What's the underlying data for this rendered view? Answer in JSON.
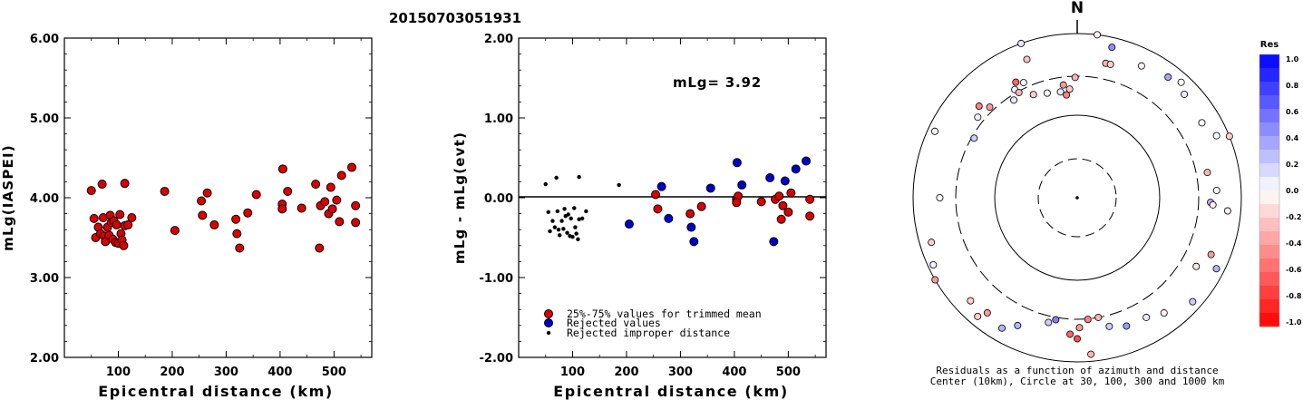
{
  "event_id": "20150703051931",
  "chart_data": [
    {
      "type": "scatter",
      "xlabel": "Epicentral distance (km)",
      "ylabel": "mLg(IASPEI)",
      "xlim": [
        0,
        570
      ],
      "ylim": [
        2.0,
        6.0
      ],
      "xticks": [
        "100",
        "200",
        "300",
        "400",
        "500"
      ],
      "yticks": [
        "2.00",
        "3.00",
        "4.00",
        "5.00",
        "6.00"
      ],
      "series": [
        {
          "color": "#dd0000",
          "points": [
            [
              50,
              4.09
            ],
            [
              70,
              4.17
            ],
            [
              112,
              4.18
            ],
            [
              55,
              3.74
            ],
            [
              58,
              3.5
            ],
            [
              63,
              3.63
            ],
            [
              67,
              3.55
            ],
            [
              72,
              3.75
            ],
            [
              74,
              3.52
            ],
            [
              76,
              3.45
            ],
            [
              80,
              3.63
            ],
            [
              83,
              3.53
            ],
            [
              85,
              3.78
            ],
            [
              87,
              3.69
            ],
            [
              90,
              3.48
            ],
            [
              92,
              3.71
            ],
            [
              95,
              3.44
            ],
            [
              97,
              3.66
            ],
            [
              100,
              3.43
            ],
            [
              103,
              3.79
            ],
            [
              105,
              3.55
            ],
            [
              107,
              3.47
            ],
            [
              110,
              3.4
            ],
            [
              112,
              3.65
            ],
            [
              118,
              3.66
            ],
            [
              125,
              3.75
            ],
            [
              186,
              4.08
            ],
            [
              205,
              3.59
            ],
            [
              254,
              3.96
            ],
            [
              265,
              4.06
            ],
            [
              256,
              3.78
            ],
            [
              278,
              3.66
            ],
            [
              318,
              3.73
            ],
            [
              320,
              3.55
            ],
            [
              325,
              3.37
            ],
            [
              340,
              3.81
            ],
            [
              356,
              4.04
            ],
            [
              405,
              4.36
            ],
            [
              404,
              3.92
            ],
            [
              404,
              3.86
            ],
            [
              414,
              4.08
            ],
            [
              440,
              3.87
            ],
            [
              466,
              4.17
            ],
            [
              473,
              3.37
            ],
            [
              475,
              3.9
            ],
            [
              483,
              3.95
            ],
            [
              490,
              3.8
            ],
            [
              494,
              4.13
            ],
            [
              497,
              3.86
            ],
            [
              505,
              3.97
            ],
            [
              514,
              4.28
            ],
            [
              510,
              3.7
            ],
            [
              533,
              4.38
            ],
            [
              540,
              3.9
            ],
            [
              540,
              3.69
            ]
          ]
        }
      ]
    },
    {
      "type": "scatter",
      "xlabel": "Epicentral distance (km)",
      "ylabel": "mLg - mLg(evt)",
      "annotation": "mLg= 3.92",
      "xlim": [
        0,
        570
      ],
      "ylim": [
        -2.0,
        2.0
      ],
      "xticks": [
        "100",
        "200",
        "300",
        "400",
        "500"
      ],
      "yticks": [
        "2.00",
        "1.00",
        "0.00",
        "-1.00",
        "-2.00"
      ],
      "reference_line": 0.0,
      "series": [
        {
          "name": "25%-75% values for trimmed mean",
          "color": "#dd0000",
          "points": [
            [
              254,
              0.04
            ],
            [
              258,
              -0.14
            ],
            [
              318,
              -0.2
            ],
            [
              339,
              -0.11
            ],
            [
              404,
              -0.02
            ],
            [
              407,
              0.02
            ],
            [
              404,
              -0.06
            ],
            [
              450,
              -0.05
            ],
            [
              476,
              -0.02
            ],
            [
              483,
              0.02
            ],
            [
              490,
              -0.1
            ],
            [
              487,
              -0.27
            ],
            [
              500,
              -0.18
            ],
            [
              505,
              0.06
            ],
            [
              540,
              -0.02
            ],
            [
              540,
              -0.23
            ]
          ]
        },
        {
          "name": "Rejected values",
          "color": "#0000cc",
          "points": [
            [
              205,
              -0.33
            ],
            [
              265,
              0.14
            ],
            [
              278,
              -0.26
            ],
            [
              320,
              -0.37
            ],
            [
              325,
              -0.55
            ],
            [
              356,
              0.12
            ],
            [
              405,
              0.44
            ],
            [
              414,
              0.16
            ],
            [
              466,
              0.25
            ],
            [
              473,
              -0.55
            ],
            [
              494,
              0.21
            ],
            [
              514,
              0.36
            ],
            [
              533,
              0.46
            ]
          ]
        },
        {
          "name": "Rejected improper distance",
          "color": "#000000",
          "points": [
            [
              50,
              0.17
            ],
            [
              70,
              0.25
            ],
            [
              112,
              0.26
            ],
            [
              186,
              0.16
            ],
            [
              55,
              -0.18
            ],
            [
              58,
              -0.42
            ],
            [
              63,
              -0.29
            ],
            [
              67,
              -0.37
            ],
            [
              72,
              -0.17
            ],
            [
              74,
              -0.4
            ],
            [
              76,
              -0.47
            ],
            [
              80,
              -0.29
            ],
            [
              83,
              -0.39
            ],
            [
              85,
              -0.14
            ],
            [
              87,
              -0.23
            ],
            [
              90,
              -0.44
            ],
            [
              92,
              -0.21
            ],
            [
              95,
              -0.48
            ],
            [
              97,
              -0.26
            ],
            [
              100,
              -0.49
            ],
            [
              103,
              -0.13
            ],
            [
              105,
              -0.37
            ],
            [
              107,
              -0.45
            ],
            [
              110,
              -0.52
            ],
            [
              112,
              -0.27
            ],
            [
              118,
              -0.26
            ],
            [
              125,
              -0.17
            ]
          ]
        }
      ]
    },
    {
      "type": "scatter",
      "title": "N",
      "caption_line1": "Residuals as a function of azimuth and distance",
      "caption_line2": "Center (10km), Circle at 30, 100, 300 and 1000 km",
      "ring_distances_km": [
        30,
        100,
        300,
        1000
      ],
      "colorbar": {
        "label": "Res",
        "ticks": [
          "1.0",
          "0.8",
          "0.6",
          "0.4",
          "0.2",
          "0.0",
          "-0.2",
          "-0.4",
          "-0.6",
          "-0.8",
          "-1.0"
        ],
        "positive_color": "#0000ff",
        "negative_color": "#ff0000"
      },
      "points_azimuth_deg_distance_km_residual": [
        [
          7,
          1000,
          -0.05
        ],
        [
          13,
          760,
          0.45
        ],
        [
          12,
          470,
          -0.3
        ],
        [
          14,
          470,
          -0.2
        ],
        [
          26,
          610,
          -0.05
        ],
        [
          37,
          690,
          0.35
        ],
        [
          42,
          780,
          0.02
        ],
        [
          46,
          650,
          0.1
        ],
        [
          59,
          590,
          -0.02
        ],
        [
          66,
          720,
          0.02
        ],
        [
          68,
          1000,
          -0.2
        ],
        [
          79,
          410,
          -0.3
        ],
        [
          92,
          420,
          0.3
        ],
        [
          87,
          500,
          0.05
        ],
        [
          93,
          450,
          -0.05
        ],
        [
          95,
          690,
          -0.05
        ],
        [
          117,
          800,
          0.3
        ],
        [
          113,
          590,
          -0.4
        ],
        [
          120,
          470,
          -0.1
        ],
        [
          132,
          780,
          0.2
        ],
        [
          143,
          570,
          -0.05
        ],
        [
          150,
          480,
          0.1
        ],
        [
          159,
          470,
          0.4
        ],
        [
          170,
          300,
          -0.3
        ],
        [
          175,
          305,
          -0.5
        ],
        [
          166,
          410,
          0.2
        ],
        [
          179,
          380,
          -0.4
        ],
        [
          180,
          520,
          -0.7
        ],
        [
          183,
          460,
          -0.6
        ],
        [
          175,
          820,
          -0.3
        ],
        [
          190,
          320,
          0.5
        ],
        [
          193,
          360,
          0.2
        ],
        [
          205,
          520,
          0.3
        ],
        [
          218,
          600,
          -0.4
        ],
        [
          220,
          770,
          -0.2
        ],
        [
          210,
          680,
          0.3
        ],
        [
          226,
          640,
          -0.2
        ],
        [
          240,
          1000,
          -0.4
        ],
        [
          245,
          860,
          0.05
        ],
        [
          253,
          720,
          -0.2
        ],
        [
          270,
          470,
          0.02
        ],
        [
          295,
          820,
          -0.05
        ],
        [
          300,
          280,
          0.2
        ],
        [
          309,
          360,
          0.05
        ],
        [
          313,
          430,
          -0.5
        ],
        [
          316,
          340,
          -0.4
        ],
        [
          327,
          260,
          0.1
        ],
        [
          330,
          330,
          0.05
        ],
        [
          331,
          290,
          -0.3
        ],
        [
          332,
          390,
          -0.6
        ],
        [
          335,
          350,
          0.05
        ],
        [
          337,
          230,
          -0.2
        ],
        [
          340,
          620,
          -0.25
        ],
        [
          344,
          210,
          0.02
        ],
        [
          351,
          200,
          0.1
        ],
        [
          353,
          240,
          -0.4
        ],
        [
          354,
          180,
          -0.5
        ],
        [
          356,
          210,
          -0.2
        ],
        [
          359,
          290,
          -0.3
        ],
        [
          340,
          1000,
          0.1
        ]
      ]
    }
  ]
}
